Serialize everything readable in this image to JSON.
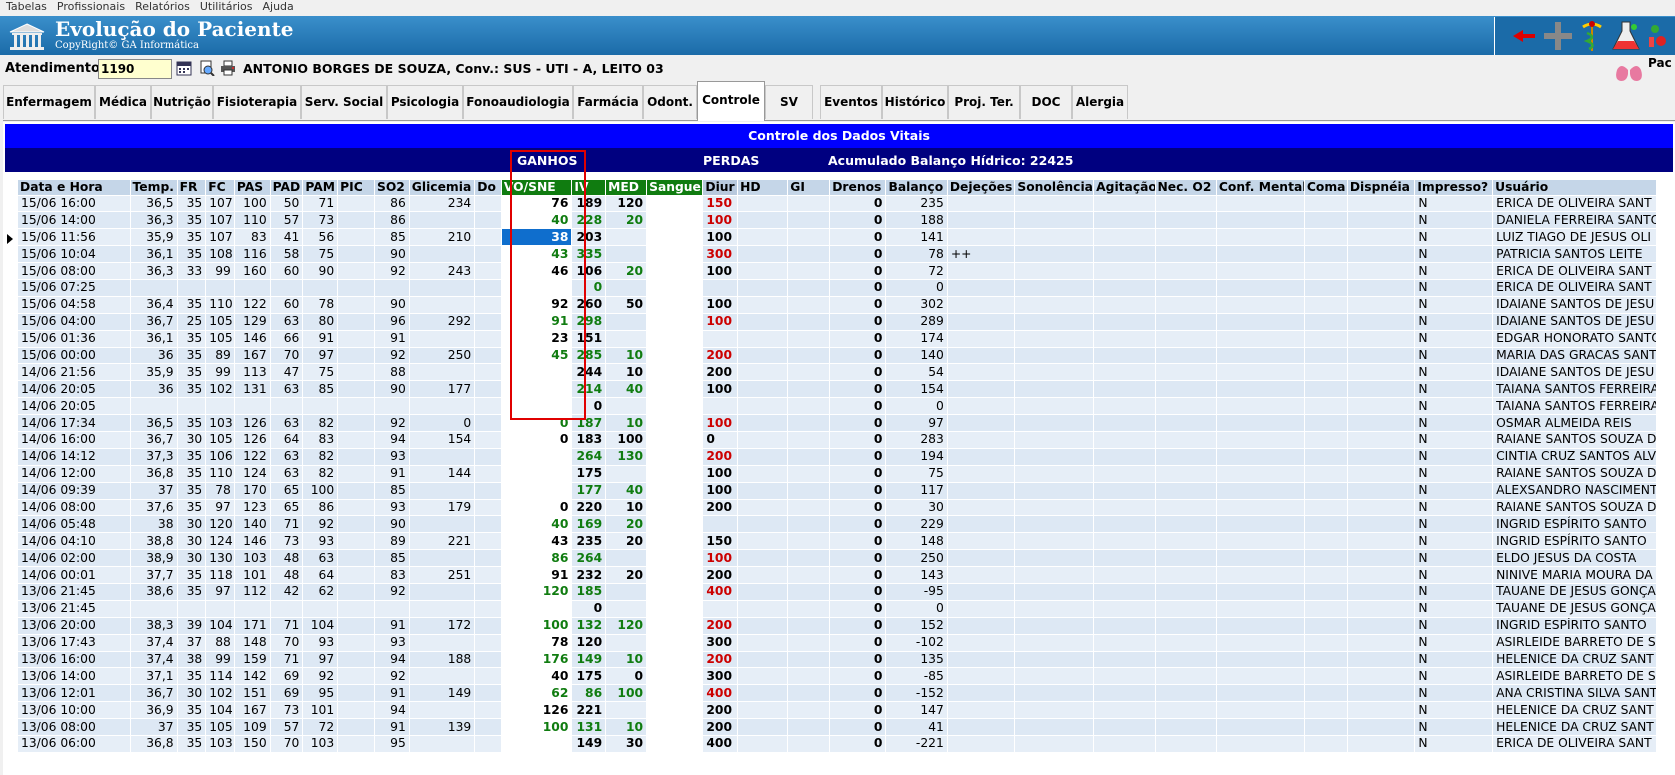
{
  "menu": [
    "Tabelas",
    "Profissionais",
    "Relatórios",
    "Utilitários",
    "Ajuda"
  ],
  "app": {
    "title": "Evolução do Paciente",
    "copyright": "CopyRight© GA Informática",
    "pac_label": "Pac"
  },
  "atendimento": {
    "label": "Atendimento",
    "value": "1190",
    "patient": "ANTONIO BORGES DE SOUZA, Conv.: SUS - UTI - A, LEITO 03"
  },
  "tabs": [
    "Enfermagem",
    "Médica",
    "Nutrição",
    "Fisioterapia",
    "Serv. Social",
    "Psicologia",
    "Fonoaudiologia",
    "Farmácia",
    "Odont.",
    "Controle",
    "SV",
    "Eventos",
    "Histórico",
    "Proj. Ter.",
    "DOC",
    "Alergia"
  ],
  "active_tab": "Controle",
  "panel": {
    "title": "Controle dos Dados Vitais",
    "ganhos": "GANHOS",
    "perdas": "PERDAS",
    "acumulado": "Acumulado Balanço Hídrico: 22425"
  },
  "columns": [
    "Data e Hora",
    "Temp.",
    "FR",
    "FC",
    "PAS",
    "PAD",
    "PAM",
    "PIC",
    "SO2",
    "Glicemia",
    "Do",
    "VO/SNE",
    "IV",
    "MED",
    "Sangue",
    "Diur",
    "HD",
    "GI",
    "Drenos",
    "Balanço",
    "Dejeções",
    "Sonolência",
    "Agitação",
    "Nec. O2",
    "Conf. Mental",
    "Coma",
    "Dispnéia",
    "Impresso?",
    "Usuário"
  ],
  "rows": [
    [
      "15/06 16:00",
      "36,5",
      "35",
      "107",
      "100",
      "50",
      "71",
      "",
      "86",
      "234",
      "",
      "76",
      "189",
      "120",
      "",
      "150",
      "",
      "",
      "0",
      "235",
      "",
      "",
      "",
      "",
      "",
      "",
      "",
      "N",
      "ERICA DE OLIVEIRA SANT"
    ],
    [
      "15/06 14:00",
      "36,3",
      "35",
      "107",
      "110",
      "57",
      "73",
      "",
      "86",
      "",
      "",
      "40",
      "228",
      "20",
      "",
      "100",
      "",
      "",
      "0",
      "188",
      "",
      "",
      "",
      "",
      "",
      "",
      "",
      "N",
      "DANIELA FERREIRA SANTO"
    ],
    [
      "15/06 11:56",
      "35,9",
      "35",
      "107",
      "83",
      "41",
      "56",
      "",
      "85",
      "210",
      "",
      "38",
      "203",
      "",
      "",
      "100",
      "",
      "",
      "0",
      "141",
      "",
      "",
      "",
      "",
      "",
      "",
      "",
      "N",
      "LUIZ TIAGO DE JESUS OLI"
    ],
    [
      "15/06 10:04",
      "36,1",
      "35",
      "108",
      "116",
      "58",
      "75",
      "",
      "90",
      "",
      "",
      "43",
      "335",
      "",
      "",
      "300",
      "",
      "",
      "0",
      "78",
      "++",
      "",
      "",
      "",
      "",
      "",
      "",
      "N",
      "PATRICIA SANTOS LEITE"
    ],
    [
      "15/06 08:00",
      "36,3",
      "33",
      "99",
      "160",
      "60",
      "90",
      "",
      "92",
      "243",
      "",
      "46",
      "106",
      "20",
      "",
      "100",
      "",
      "",
      "0",
      "72",
      "",
      "",
      "",
      "",
      "",
      "",
      "",
      "N",
      "ERICA DE OLIVEIRA SANT"
    ],
    [
      "15/06 07:25",
      "",
      "",
      "",
      "",
      "",
      "",
      "",
      "",
      "",
      "",
      "",
      "0",
      "",
      "",
      "",
      "",
      "",
      "0",
      "0",
      "",
      "",
      "",
      "",
      "",
      "",
      "",
      "N",
      "ERICA DE OLIVEIRA SANT"
    ],
    [
      "15/06 04:58",
      "36,4",
      "35",
      "110",
      "122",
      "60",
      "78",
      "",
      "90",
      "",
      "",
      "92",
      "260",
      "50",
      "",
      "100",
      "",
      "",
      "0",
      "302",
      "",
      "",
      "",
      "",
      "",
      "",
      "",
      "N",
      "IDAIANE SANTOS DE JESU"
    ],
    [
      "15/06 04:00",
      "36,7",
      "25",
      "105",
      "129",
      "63",
      "80",
      "",
      "96",
      "292",
      "",
      "91",
      "298",
      "",
      "",
      "100",
      "",
      "",
      "0",
      "289",
      "",
      "",
      "",
      "",
      "",
      "",
      "",
      "N",
      "IDAIANE SANTOS DE JESU"
    ],
    [
      "15/06 01:36",
      "36,1",
      "35",
      "105",
      "146",
      "66",
      "91",
      "",
      "91",
      "",
      "",
      "23",
      "151",
      "",
      "",
      "",
      "",
      "",
      "0",
      "174",
      "",
      "",
      "",
      "",
      "",
      "",
      "",
      "N",
      "EDGAR HONORATO SANTO"
    ],
    [
      "15/06 00:00",
      "36",
      "35",
      "89",
      "167",
      "70",
      "97",
      "",
      "92",
      "250",
      "",
      "45",
      "285",
      "10",
      "",
      "200",
      "",
      "",
      "0",
      "140",
      "",
      "",
      "",
      "",
      "",
      "",
      "",
      "N",
      "MARIA DAS GRACAS SANT"
    ],
    [
      "14/06 21:56",
      "35,9",
      "35",
      "99",
      "113",
      "47",
      "75",
      "",
      "88",
      "",
      "",
      "",
      "244",
      "10",
      "",
      "200",
      "",
      "",
      "0",
      "54",
      "",
      "",
      "",
      "",
      "",
      "",
      "",
      "N",
      "IDAIANE SANTOS DE JESU"
    ],
    [
      "14/06 20:05",
      "36",
      "35",
      "102",
      "131",
      "63",
      "85",
      "",
      "90",
      "177",
      "",
      "",
      "214",
      "40",
      "",
      "100",
      "",
      "",
      "0",
      "154",
      "",
      "",
      "",
      "",
      "",
      "",
      "",
      "N",
      "TAIANA SANTOS FERREIRA"
    ],
    [
      "14/06 20:05",
      "",
      "",
      "",
      "",
      "",
      "",
      "",
      "",
      "",
      "",
      "",
      "0",
      "",
      "",
      "",
      "",
      "",
      "0",
      "0",
      "",
      "",
      "",
      "",
      "",
      "",
      "",
      "N",
      "TAIANA SANTOS FERREIRA"
    ],
    [
      "14/06 17:34",
      "36,5",
      "35",
      "103",
      "126",
      "63",
      "82",
      "",
      "92",
      "0",
      "",
      "0",
      "187",
      "10",
      "",
      "100",
      "",
      "",
      "0",
      "97",
      "",
      "",
      "",
      "",
      "",
      "",
      "",
      "N",
      "OSMAR ALMEIDA REIS"
    ],
    [
      "14/06 16:00",
      "36,7",
      "30",
      "105",
      "126",
      "64",
      "83",
      "",
      "94",
      "154",
      "",
      "0",
      "183",
      "100",
      "",
      "0",
      "",
      "",
      "0",
      "283",
      "",
      "",
      "",
      "",
      "",
      "",
      "",
      "N",
      "RAIANE SANTOS SOUZA D"
    ],
    [
      "14/06 14:12",
      "37,3",
      "35",
      "106",
      "122",
      "63",
      "82",
      "",
      "93",
      "",
      "",
      "",
      "264",
      "130",
      "",
      "200",
      "",
      "",
      "0",
      "194",
      "",
      "",
      "",
      "",
      "",
      "",
      "",
      "N",
      "CINTIA CRUZ SANTOS ALV"
    ],
    [
      "14/06 12:00",
      "36,8",
      "35",
      "110",
      "124",
      "63",
      "82",
      "",
      "91",
      "144",
      "",
      "",
      "175",
      "",
      "",
      "100",
      "",
      "",
      "0",
      "75",
      "",
      "",
      "",
      "",
      "",
      "",
      "",
      "N",
      "RAIANE SANTOS SOUZA D"
    ],
    [
      "14/06 09:39",
      "37",
      "35",
      "78",
      "170",
      "65",
      "100",
      "",
      "85",
      "",
      "",
      "",
      "177",
      "40",
      "",
      "100",
      "",
      "",
      "0",
      "117",
      "",
      "",
      "",
      "",
      "",
      "",
      "",
      "N",
      "ALEXSANDRO NASCIMENT"
    ],
    [
      "14/06 08:00",
      "37,6",
      "35",
      "97",
      "123",
      "65",
      "86",
      "",
      "93",
      "179",
      "",
      "0",
      "220",
      "10",
      "",
      "200",
      "",
      "",
      "0",
      "30",
      "",
      "",
      "",
      "",
      "",
      "",
      "",
      "N",
      "RAIANE SANTOS SOUZA D"
    ],
    [
      "14/06 05:48",
      "38",
      "30",
      "120",
      "140",
      "71",
      "92",
      "",
      "90",
      "",
      "",
      "40",
      "169",
      "20",
      "",
      "",
      "",
      "",
      "0",
      "229",
      "",
      "",
      "",
      "",
      "",
      "",
      "",
      "N",
      "INGRID ESPÍRITO SANTO"
    ],
    [
      "14/06 04:10",
      "38,8",
      "30",
      "124",
      "146",
      "73",
      "93",
      "",
      "89",
      "221",
      "",
      "43",
      "235",
      "20",
      "",
      "150",
      "",
      "",
      "0",
      "148",
      "",
      "",
      "",
      "",
      "",
      "",
      "",
      "N",
      "INGRID ESPÍRITO SANTO"
    ],
    [
      "14/06 02:00",
      "38,9",
      "30",
      "130",
      "103",
      "48",
      "63",
      "",
      "85",
      "",
      "",
      "86",
      "264",
      "",
      "",
      "100",
      "",
      "",
      "0",
      "250",
      "",
      "",
      "",
      "",
      "",
      "",
      "",
      "N",
      "ELDO JESUS DA COSTA"
    ],
    [
      "14/06 00:01",
      "37,7",
      "35",
      "118",
      "101",
      "48",
      "64",
      "",
      "83",
      "251",
      "",
      "91",
      "232",
      "20",
      "",
      "200",
      "",
      "",
      "0",
      "143",
      "",
      "",
      "",
      "",
      "",
      "",
      "",
      "N",
      "NINIVE MARIA MOURA DA"
    ],
    [
      "13/06 21:45",
      "38,6",
      "35",
      "97",
      "112",
      "42",
      "62",
      "",
      "92",
      "",
      "",
      "120",
      "185",
      "",
      "",
      "400",
      "",
      "",
      "0",
      "-95",
      "",
      "",
      "",
      "",
      "",
      "",
      "",
      "N",
      "TAUANE DE JESUS GONÇA"
    ],
    [
      "13/06 21:45",
      "",
      "",
      "",
      "",
      "",
      "",
      "",
      "",
      "",
      "",
      "",
      "0",
      "",
      "",
      "",
      "",
      "",
      "0",
      "0",
      "",
      "",
      "",
      "",
      "",
      "",
      "",
      "N",
      "TAUANE DE JESUS GONÇA"
    ],
    [
      "13/06 20:00",
      "38,3",
      "39",
      "104",
      "171",
      "71",
      "104",
      "",
      "91",
      "172",
      "",
      "100",
      "132",
      "120",
      "",
      "200",
      "",
      "",
      "0",
      "152",
      "",
      "",
      "",
      "",
      "",
      "",
      "",
      "N",
      "INGRID ESPÍRITO SANTO"
    ],
    [
      "13/06 17:43",
      "37,4",
      "37",
      "88",
      "148",
      "70",
      "93",
      "",
      "93",
      "",
      "",
      "78",
      "120",
      "",
      "",
      "300",
      "",
      "",
      "0",
      "-102",
      "",
      "",
      "",
      "",
      "",
      "",
      "",
      "N",
      "ASIRLEIDE BARRETO DE S"
    ],
    [
      "13/06 16:00",
      "37,4",
      "38",
      "99",
      "159",
      "71",
      "97",
      "",
      "94",
      "188",
      "",
      "176",
      "149",
      "10",
      "",
      "200",
      "",
      "",
      "0",
      "135",
      "",
      "",
      "",
      "",
      "",
      "",
      "",
      "N",
      "HELENICE DA CRUZ SANT"
    ],
    [
      "13/06 14:00",
      "37,1",
      "35",
      "114",
      "142",
      "69",
      "92",
      "",
      "92",
      "",
      "",
      "40",
      "175",
      "0",
      "",
      "300",
      "",
      "",
      "0",
      "-85",
      "",
      "",
      "",
      "",
      "",
      "",
      "",
      "N",
      "ASIRLEIDE BARRETO DE S"
    ],
    [
      "13/06 12:01",
      "36,7",
      "30",
      "102",
      "151",
      "69",
      "95",
      "",
      "91",
      "149",
      "",
      "62",
      "86",
      "100",
      "",
      "400",
      "",
      "",
      "0",
      "-152",
      "",
      "",
      "",
      "",
      "",
      "",
      "",
      "N",
      "ANA CRISTINA SILVA SANT"
    ],
    [
      "13/06 10:00",
      "36,9",
      "35",
      "104",
      "167",
      "73",
      "101",
      "",
      "94",
      "",
      "",
      "126",
      "221",
      "",
      "",
      "200",
      "",
      "",
      "0",
      "147",
      "",
      "",
      "",
      "",
      "",
      "",
      "",
      "N",
      "HELENICE DA CRUZ SANT"
    ],
    [
      "13/06 08:00",
      "37",
      "35",
      "105",
      "109",
      "57",
      "72",
      "",
      "91",
      "139",
      "",
      "100",
      "131",
      "10",
      "",
      "200",
      "",
      "",
      "0",
      "41",
      "",
      "",
      "",
      "",
      "",
      "",
      "",
      "N",
      "HELENICE DA CRUZ SANT"
    ],
    [
      "13/06 06:00",
      "36,8",
      "35",
      "103",
      "150",
      "70",
      "103",
      "",
      "95",
      "",
      "",
      "",
      "149",
      "30",
      "",
      "400",
      "",
      "",
      "0",
      "-221",
      "",
      "",
      "",
      "",
      "",
      "",
      "",
      "N",
      "ERICA DE OLIVEIRA SANT"
    ]
  ],
  "green_vo": [
    1,
    3,
    7,
    9,
    13,
    19,
    21,
    23,
    25,
    27,
    29,
    31
  ],
  "green_iv": [
    1,
    3,
    5,
    7,
    9,
    11,
    13,
    15,
    17,
    19,
    21,
    23,
    25,
    27,
    29,
    31
  ],
  "green_med": [
    1,
    4,
    9,
    11,
    13,
    15,
    17,
    19,
    25,
    27,
    29,
    31
  ],
  "red_diur": [
    0,
    1,
    3,
    7,
    9,
    13,
    15,
    21,
    23,
    25,
    27,
    29
  ],
  "blue_diur_black": [],
  "selected_row": 2,
  "colors": {
    "header_blue": "#0000ff",
    "navy": "#000080",
    "green_col": "#107c10",
    "selected": "#0f6ecd",
    "highlight_box": "#e00000"
  }
}
